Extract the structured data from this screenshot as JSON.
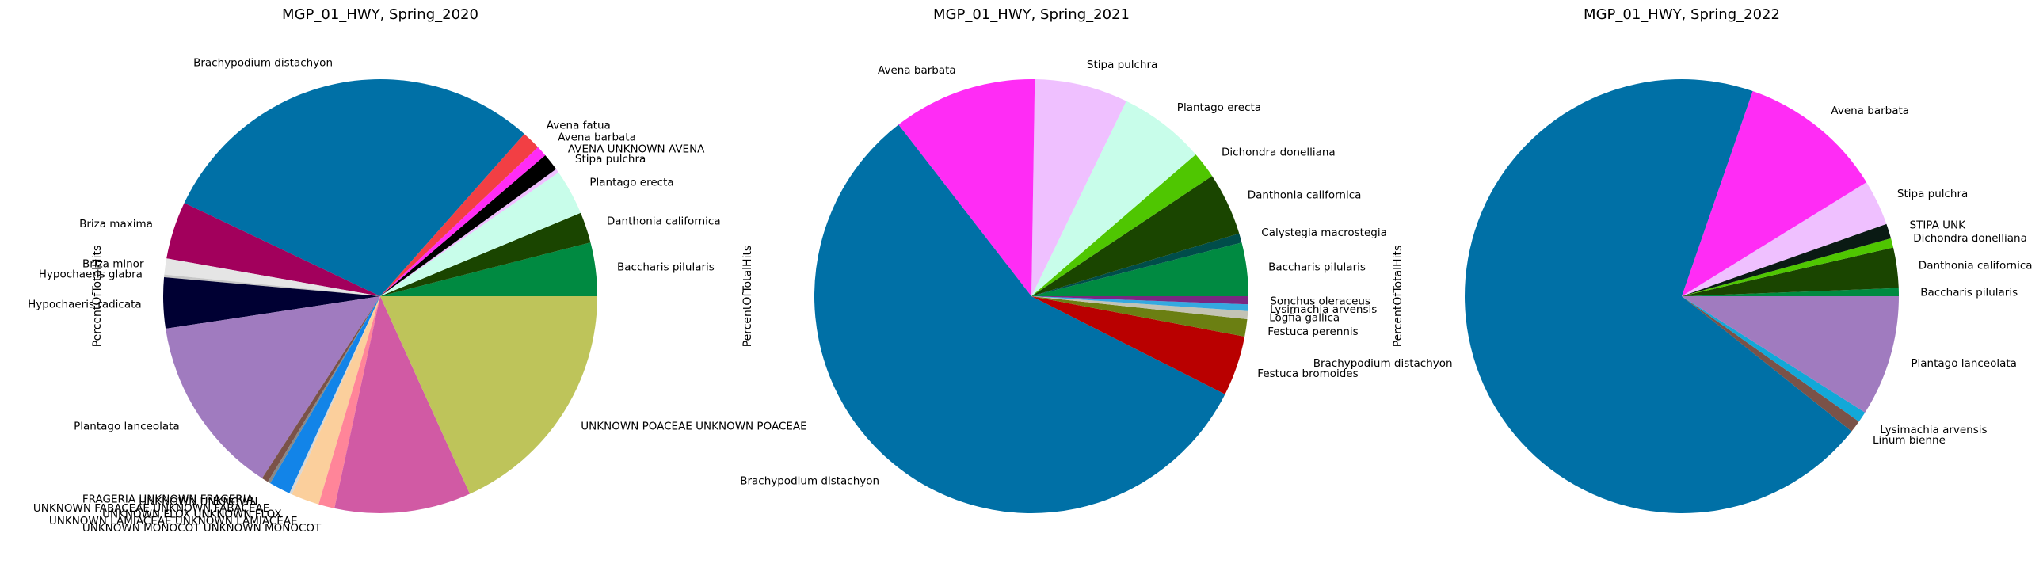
{
  "chart_data": [
    {
      "type": "pie",
      "title": "MGP_01_HWY, Spring_2020",
      "ylabel": "PercentOfTotalHits",
      "slices": [
        {
          "label": "Baccharis pilularis",
          "value": 4.0,
          "color": "#008a41"
        },
        {
          "label": "Danthonia californica",
          "value": 2.3,
          "color": "#1a4500"
        },
        {
          "label": "Plantago erecta",
          "value": 3.4,
          "color": "#c8fdea"
        },
        {
          "label": "Stipa pulchra",
          "value": 0.3,
          "color": "#efc0ff"
        },
        {
          "label": "AVENA UNKNOWN AVENA",
          "value": 1.3,
          "color": "#000000"
        },
        {
          "label": "Avena barbata",
          "value": 0.8,
          "color": "#ff2cf5"
        },
        {
          "label": "Avena fatua",
          "value": 1.4,
          "color": "#f23f44"
        },
        {
          "label": "Brachypodium distachyon",
          "value": 29.6,
          "color": "#0070a6"
        },
        {
          "label": "Briza maxima",
          "value": 4.3,
          "color": "#a2005c"
        },
        {
          "label": "Briza minor",
          "value": 1.2,
          "color": "#e5e5e5"
        },
        {
          "label": "Hypochaeris glabra",
          "value": 0.2,
          "color": "#c7c7c7"
        },
        {
          "label": "Hypochaeris radicata",
          "value": 3.8,
          "color": "#000033"
        },
        {
          "label": "Plantago lanceolata",
          "value": 13.5,
          "color": "#a07bbf"
        },
        {
          "label": "FRAGERIA UNKNOWN FRAGERIA",
          "value": 0.5,
          "color": "#7a5248"
        },
        {
          "label": "UNKNOWN UNKNOWN",
          "value": 0.2,
          "color": "#888888"
        },
        {
          "label": "UNKNOWN FABACEAE UNKNOWN FABACEAE",
          "value": 1.6,
          "color": "#1284e8"
        },
        {
          "label": "UNKNOWN FLOX UNKNOWN FLOX",
          "value": 0.2,
          "color": "#d6d6d6"
        },
        {
          "label": "UNKNOWN LAMIACEAE UNKNOWN LAMIACEAE",
          "value": 2.1,
          "color": "#fbcf9c"
        },
        {
          "label": "UNKNOWN MONOCOT UNKNOWN MONOCOT",
          "value": 1.2,
          "color": "#ff8599"
        },
        {
          "label": "",
          "value": 10.2,
          "color": "#d15aa4"
        },
        {
          "label": "UNKNOWN POACEAE UNKNOWN POACEAE",
          "value": 18.3,
          "color": "#bec45a"
        }
      ]
    },
    {
      "type": "pie",
      "title": "MGP_01_HWY, Spring_2021",
      "ylabel": "PercentOfTotalHits",
      "slices": [
        {
          "label": "Baccharis pilularis",
          "value": 4.0,
          "color": "#008a41"
        },
        {
          "label": "Calystegia macrostegia",
          "value": 0.7,
          "color": "#004d4a"
        },
        {
          "label": "Danthonia californica",
          "value": 4.7,
          "color": "#1a4500"
        },
        {
          "label": "Dichondra donelliana",
          "value": 2.0,
          "color": "#4fc601"
        },
        {
          "label": "Plantago erecta",
          "value": 6.5,
          "color": "#c8fdea"
        },
        {
          "label": "Stipa pulchra",
          "value": 7.0,
          "color": "#efc0ff"
        },
        {
          "label": "Avena barbata",
          "value": 10.8,
          "color": "#ff2cf5"
        },
        {
          "label": "Brachypodium distachyon",
          "value": 57.4,
          "color": "#0070a6"
        },
        {
          "label": "Festuca bromoides",
          "value": 4.5,
          "color": "#b90000"
        },
        {
          "label": "Festuca perennis",
          "value": 1.3,
          "color": "#6b7f12"
        },
        {
          "label": "Logfia gallica",
          "value": 0.6,
          "color": "#c3c3b5"
        },
        {
          "label": "Lysimachia arvensis",
          "value": 0.5,
          "color": "#35a9e0"
        },
        {
          "label": "Sonchus oleraceus",
          "value": 0.6,
          "color": "#7a2782"
        }
      ]
    },
    {
      "type": "pie",
      "title": "MGP_01_HWY, Spring_2022",
      "ylabel": "PercentOfTotalHits",
      "slices": [
        {
          "label": "Baccharis pilularis",
          "value": 0.6,
          "color": "#008a41"
        },
        {
          "label": "Danthonia californica",
          "value": 3.0,
          "color": "#1a4500"
        },
        {
          "label": "Dichondra donelliana",
          "value": 0.7,
          "color": "#4fc601"
        },
        {
          "label": "STIPA UNK",
          "value": 1.1,
          "color": "#0a1a14"
        },
        {
          "label": "Stipa pulchra",
          "value": 3.4,
          "color": "#efc0ff"
        },
        {
          "label": "Avena barbata",
          "value": 10.9,
          "color": "#ff2cf5"
        },
        {
          "label": "Brachypodium distachyon",
          "value": 69.6,
          "color": "#0070a6"
        },
        {
          "label": "Linum bienne",
          "value": 0.9,
          "color": "#7a5248"
        },
        {
          "label": "Lysimachia arvensis",
          "value": 0.8,
          "color": "#12a8d8"
        },
        {
          "label": "Plantago lanceolata",
          "value": 9.0,
          "color": "#a07bbf"
        }
      ]
    }
  ]
}
